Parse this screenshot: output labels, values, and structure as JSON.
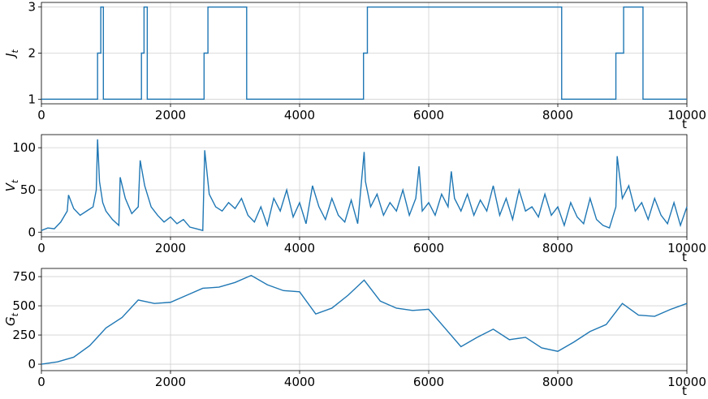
{
  "chart_data": [
    {
      "type": "step",
      "color": "#1f77b4",
      "grid": true,
      "xlabel": "t",
      "ylabel": {
        "base": "J",
        "subscript": "t"
      },
      "xlim": [
        0,
        10000
      ],
      "ylim": [
        0.9,
        3.1
      ],
      "xticks": [
        0,
        2000,
        4000,
        6000,
        8000,
        10000
      ],
      "yticks": [
        1,
        2,
        3
      ],
      "x": [
        0,
        870,
        920,
        960,
        1550,
        1590,
        1640,
        2520,
        2580,
        3180,
        4990,
        5050,
        8060,
        8900,
        9020,
        9320,
        10000
      ],
      "values": [
        1,
        2,
        3,
        1,
        2,
        3,
        1,
        2,
        3,
        1,
        2,
        3,
        1,
        2,
        3,
        1,
        1
      ]
    },
    {
      "type": "line",
      "color": "#1f77b4",
      "grid": true,
      "xlabel": "t",
      "ylabel": {
        "base": "V",
        "subscript": "t"
      },
      "xlim": [
        0,
        10000
      ],
      "ylim": [
        -5.5,
        115.5
      ],
      "xticks": [
        0,
        2000,
        4000,
        6000,
        8000,
        10000
      ],
      "yticks": [
        0,
        50,
        100
      ],
      "x": [
        0,
        100,
        200,
        300,
        400,
        420,
        500,
        600,
        700,
        800,
        850,
        870,
        900,
        950,
        1000,
        1100,
        1200,
        1220,
        1300,
        1400,
        1500,
        1530,
        1600,
        1700,
        1800,
        1900,
        2000,
        2100,
        2200,
        2300,
        2400,
        2500,
        2530,
        2600,
        2700,
        2800,
        2900,
        3000,
        3100,
        3200,
        3300,
        3400,
        3500,
        3600,
        3700,
        3800,
        3900,
        4000,
        4100,
        4200,
        4300,
        4400,
        4500,
        4600,
        4700,
        4800,
        4900,
        5000,
        5020,
        5100,
        5200,
        5300,
        5400,
        5500,
        5600,
        5700,
        5800,
        5850,
        5900,
        6000,
        6100,
        6200,
        6300,
        6350,
        6400,
        6500,
        6600,
        6700,
        6800,
        6900,
        7000,
        7100,
        7200,
        7300,
        7400,
        7500,
        7600,
        7700,
        7800,
        7900,
        8000,
        8100,
        8200,
        8300,
        8400,
        8500,
        8600,
        8700,
        8800,
        8900,
        8920,
        9000,
        9100,
        9200,
        9300,
        9400,
        9500,
        9600,
        9700,
        9800,
        9900,
        10000
      ],
      "values": [
        2,
        5,
        4,
        12,
        25,
        44,
        28,
        20,
        25,
        30,
        50,
        110,
        60,
        35,
        25,
        15,
        8,
        65,
        40,
        22,
        30,
        85,
        55,
        30,
        20,
        12,
        18,
        10,
        15,
        6,
        4,
        2,
        97,
        45,
        30,
        25,
        35,
        28,
        40,
        20,
        12,
        30,
        8,
        40,
        25,
        50,
        18,
        35,
        10,
        55,
        30,
        15,
        40,
        20,
        12,
        38,
        10,
        95,
        60,
        30,
        45,
        20,
        35,
        25,
        50,
        20,
        40,
        78,
        25,
        35,
        20,
        45,
        30,
        72,
        40,
        25,
        45,
        20,
        38,
        25,
        55,
        20,
        40,
        15,
        50,
        25,
        30,
        18,
        45,
        20,
        30,
        8,
        35,
        18,
        10,
        40,
        15,
        8,
        5,
        30,
        90,
        40,
        55,
        25,
        35,
        15,
        40,
        20,
        10,
        35,
        8,
        30
      ]
    },
    {
      "type": "line",
      "color": "#1f77b4",
      "grid": true,
      "xlabel": "t",
      "ylabel": {
        "base": "G",
        "subscript": "t"
      },
      "xlim": [
        0,
        10000
      ],
      "ylim": [
        -55,
        820
      ],
      "xticks": [
        0,
        2000,
        4000,
        6000,
        8000,
        10000
      ],
      "yticks": [
        0,
        250,
        500,
        750
      ],
      "x": [
        0,
        250,
        500,
        750,
        1000,
        1250,
        1500,
        1750,
        2000,
        2250,
        2500,
        2750,
        3000,
        3250,
        3500,
        3750,
        4000,
        4250,
        4500,
        4750,
        5000,
        5250,
        5500,
        5750,
        6000,
        6250,
        6500,
        6750,
        7000,
        7250,
        7500,
        7750,
        8000,
        8250,
        8500,
        8750,
        9000,
        9250,
        9500,
        9750,
        10000
      ],
      "values": [
        0,
        20,
        60,
        160,
        310,
        400,
        550,
        520,
        530,
        590,
        650,
        660,
        700,
        760,
        680,
        630,
        620,
        430,
        480,
        590,
        720,
        540,
        480,
        460,
        470,
        310,
        150,
        230,
        300,
        210,
        230,
        140,
        110,
        190,
        280,
        340,
        520,
        420,
        410,
        470,
        520
      ]
    }
  ]
}
